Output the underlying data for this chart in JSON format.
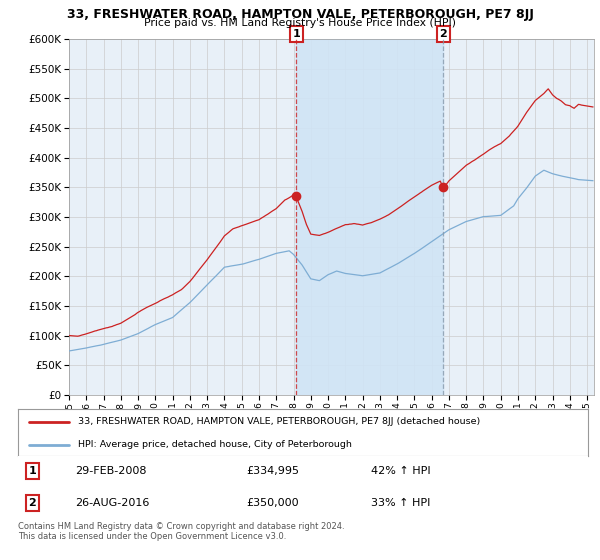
{
  "title": "33, FRESHWATER ROAD, HAMPTON VALE, PETERBOROUGH, PE7 8JJ",
  "subtitle": "Price paid vs. HM Land Registry's House Price Index (HPI)",
  "ylim": [
    0,
    600000
  ],
  "yticks": [
    0,
    50000,
    100000,
    150000,
    200000,
    250000,
    300000,
    350000,
    400000,
    450000,
    500000,
    550000,
    600000
  ],
  "xlim_start": 1995.0,
  "xlim_end": 2025.4,
  "background_color": "#ffffff",
  "plot_bg_color": "#e8f0f8",
  "grid_color": "#cccccc",
  "red_line_color": "#cc2222",
  "blue_line_color": "#7eadd4",
  "shade_color": "#d0e4f5",
  "marker1_x": 2008.16,
  "marker2_x": 2016.67,
  "marker1_label": "1",
  "marker2_label": "2",
  "legend_line1": "33, FRESHWATER ROAD, HAMPTON VALE, PETERBOROUGH, PE7 8JJ (detached house)",
  "legend_line2": "HPI: Average price, detached house, City of Peterborough",
  "footer": "Contains HM Land Registry data © Crown copyright and database right 2024.\nThis data is licensed under the Open Government Licence v3.0.",
  "marker1_date": "29-FEB-2008",
  "marker1_price": "£334,995",
  "marker1_hpi": "42% ↑ HPI",
  "marker2_date": "26-AUG-2016",
  "marker2_price": "£350,000",
  "marker2_hpi": "33% ↑ HPI"
}
